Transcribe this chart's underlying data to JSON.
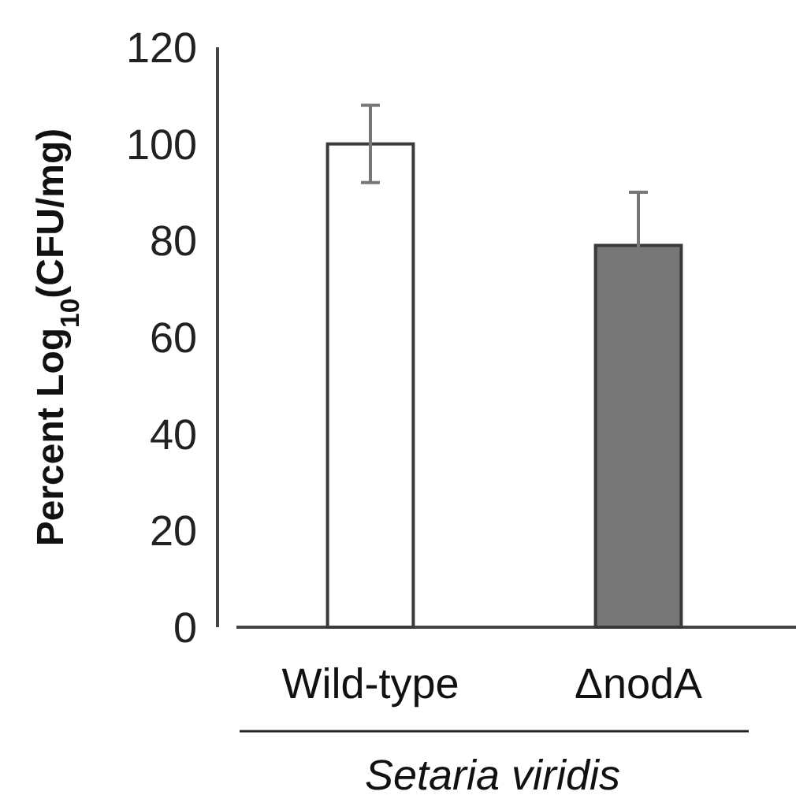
{
  "chart_data": {
    "type": "bar",
    "categories": [
      "Wild-type",
      "ΔnodA"
    ],
    "values": [
      100,
      79
    ],
    "colors": [
      "#ffffff",
      "#767676"
    ],
    "errors": [
      8,
      11
    ],
    "ylabel": "Percent Log$_{10}$(CFU/mg)",
    "xlabel": "Setaria viridis",
    "ylim": [
      0,
      120
    ],
    "yticks": [
      0,
      20,
      40,
      60,
      80,
      100,
      120
    ]
  }
}
